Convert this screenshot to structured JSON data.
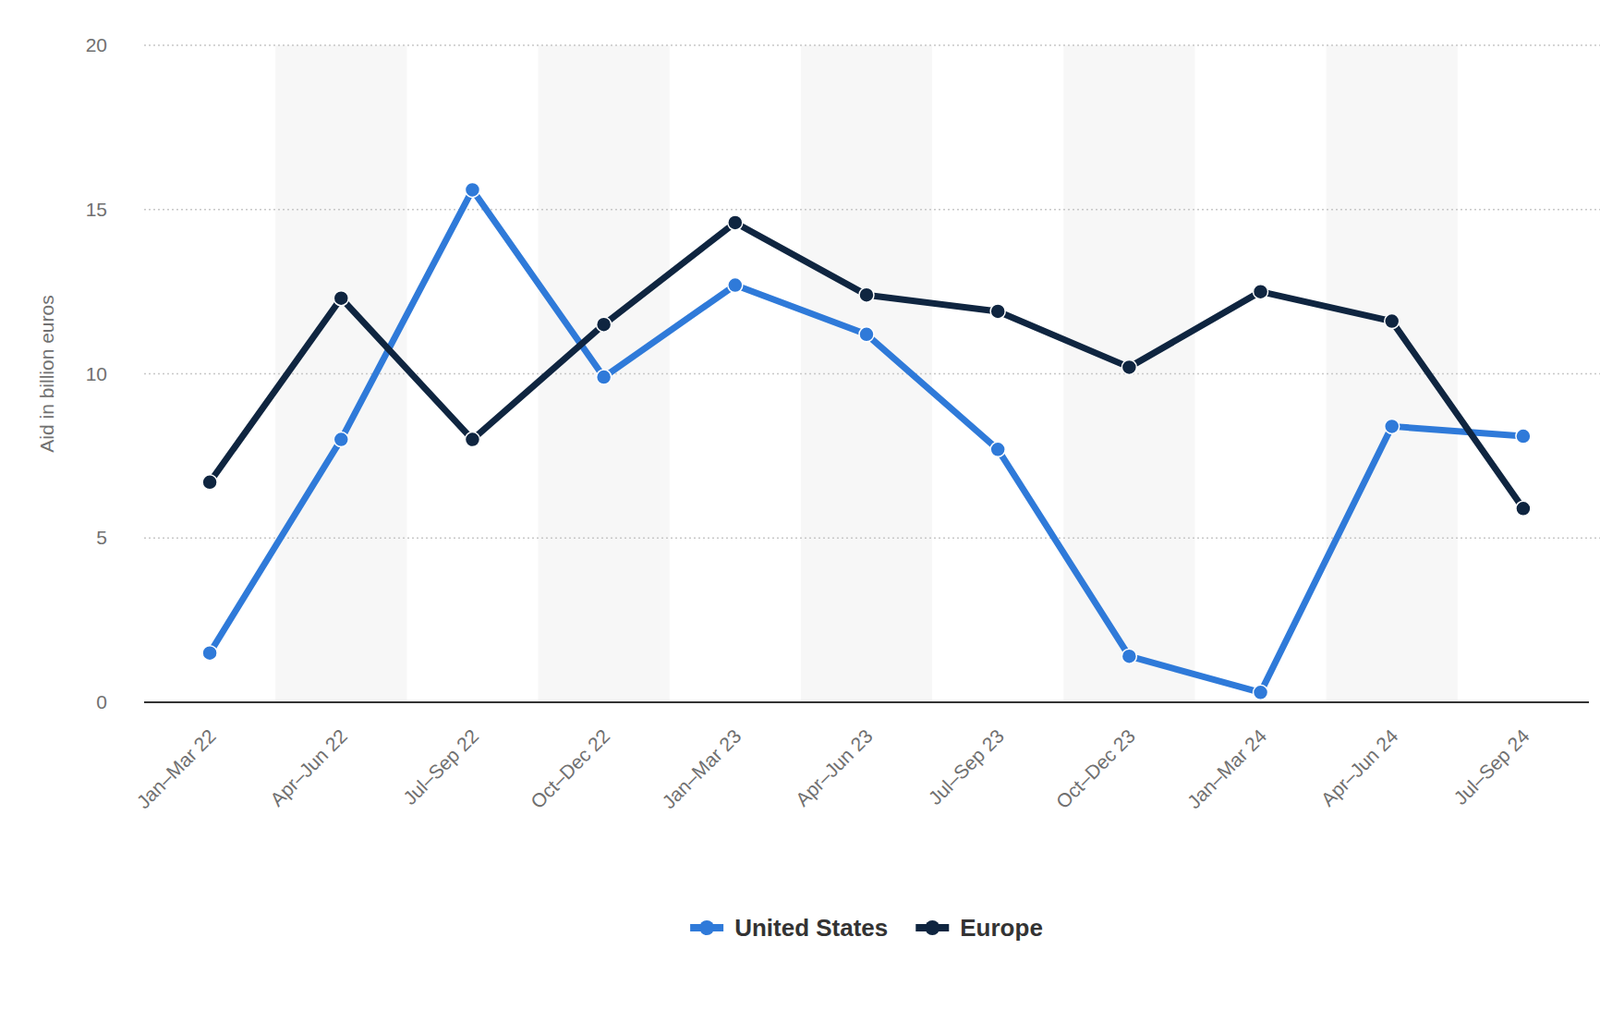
{
  "chart_data": {
    "type": "line",
    "y_label": "Aid in billion euros",
    "categories": [
      "Jan–Mar 22",
      "Apr–Jun 22",
      "Jul–Sep 22",
      "Oct–Dec 22",
      "Jan–Mar 23",
      "Apr–Jun 23",
      "Jul–Sep 23",
      "Oct–Dec 23",
      "Jan–Mar 24",
      "Apr–Jun 24",
      "Jul–Sep 24"
    ],
    "series": [
      {
        "name": "United States",
        "color": "#2f7ad9",
        "marker": "circle",
        "values": [
          1.5,
          8.0,
          15.6,
          9.9,
          12.7,
          11.2,
          7.7,
          1.4,
          0.3,
          8.4,
          8.1
        ]
      },
      {
        "name": "Europe",
        "color": "#0f2540",
        "marker": "circle",
        "values": [
          6.7,
          12.3,
          8.0,
          11.5,
          14.6,
          12.4,
          11.9,
          10.2,
          12.5,
          11.6,
          5.9
        ]
      }
    ],
    "ylim": [
      0,
      20
    ],
    "yticks": [
      0,
      5,
      10,
      15,
      20
    ],
    "grid": true,
    "legend": "bottom"
  }
}
